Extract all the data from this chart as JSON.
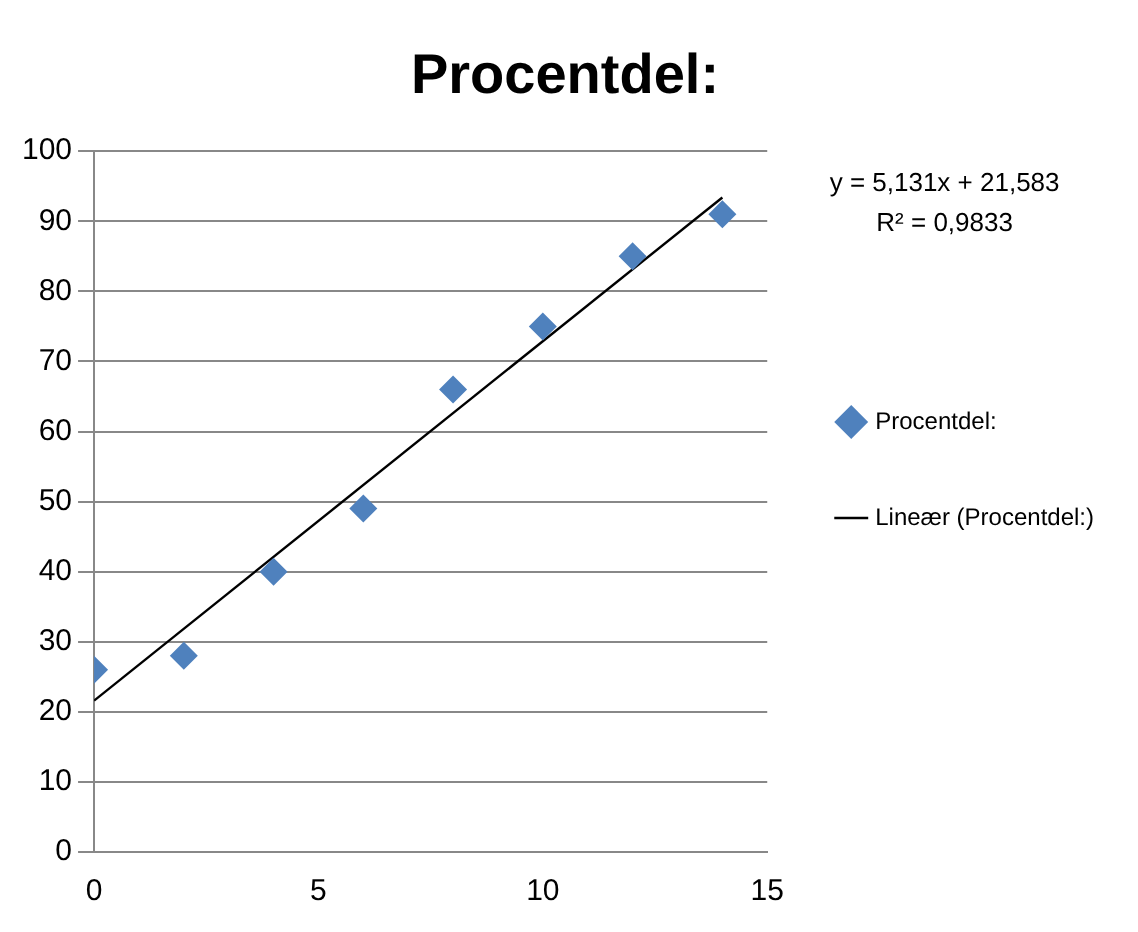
{
  "chart_data": {
    "type": "scatter",
    "title": "Procentdel:",
    "x": [
      0,
      2,
      4,
      6,
      8,
      10,
      12,
      14
    ],
    "series": [
      {
        "name": "Procentdel:",
        "type": "scatter",
        "color": "#4f81bd",
        "marker": "diamond",
        "values": [
          26,
          28,
          40,
          49,
          66,
          75,
          85,
          91
        ]
      },
      {
        "name": "Lineær (Procentdel:)",
        "type": "line",
        "color": "#000000",
        "marker": "none",
        "line_style": "solid",
        "x": [
          0,
          14
        ],
        "values": [
          21.6,
          93.4
        ]
      }
    ],
    "xlim": [
      0,
      15
    ],
    "xticks": [
      0,
      5,
      10,
      15
    ],
    "ylim": [
      0,
      100
    ],
    "yticks": [
      0,
      10,
      20,
      30,
      40,
      50,
      60,
      70,
      80,
      90,
      100
    ],
    "grid": "y",
    "legend": "right",
    "annotations": [
      "y = 5,131x + 21,583",
      "R² = 0,9833"
    ]
  }
}
